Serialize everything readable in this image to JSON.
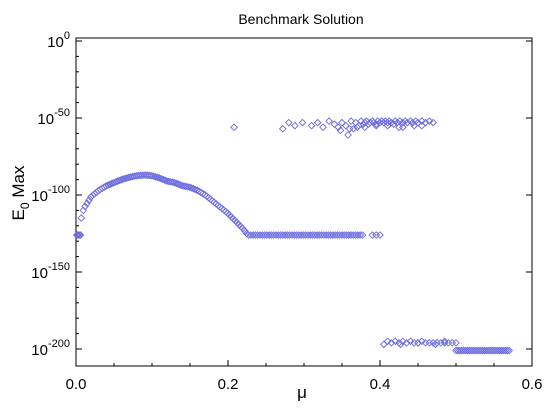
{
  "chart_data": {
    "type": "scatter",
    "title": "Benchmark Solution",
    "xlabel": "μ",
    "ylabel": {
      "base": "E",
      "sub": "0",
      "rest": " Max"
    },
    "xlim": [
      0.0,
      0.6
    ],
    "ylim_exponent": [
      -210,
      0
    ],
    "y_scale": "log",
    "grid": false,
    "legend": "none",
    "x_ticks": [
      {
        "value": 0.0,
        "label": "0.0"
      },
      {
        "value": 0.2,
        "label": "0.2"
      },
      {
        "value": 0.4,
        "label": "0.4"
      },
      {
        "value": 0.6,
        "label": "0.6"
      }
    ],
    "y_ticks": [
      {
        "exponent": 0,
        "base": "10",
        "exp": "0"
      },
      {
        "exponent": -50,
        "base": "10",
        "exp": "-50"
      },
      {
        "exponent": -100,
        "base": "10",
        "exp": "-100"
      },
      {
        "exponent": -150,
        "base": "10",
        "exp": "-150"
      },
      {
        "exponent": -200,
        "base": "10",
        "exp": "-200"
      }
    ],
    "marker": "diamond-open",
    "marker_color": "#6a6ae0",
    "y_values_are_log10": true,
    "series": [
      {
        "points_x": [
          0.001,
          0.002,
          0.003,
          0.005,
          0.006
        ],
        "points_y": [
          -126,
          -126,
          -126,
          -126,
          -126
        ]
      },
      {
        "generator": "curve",
        "x_knots": [
          0.007,
          0.01,
          0.015,
          0.02,
          0.03,
          0.04,
          0.05,
          0.06,
          0.07,
          0.08,
          0.09,
          0.1,
          0.11,
          0.12,
          0.13,
          0.14,
          0.15,
          0.16,
          0.17,
          0.18,
          0.19,
          0.2,
          0.21,
          0.22,
          0.226
        ],
        "y_knots": [
          -115,
          -109,
          -105,
          -101,
          -97,
          -94,
          -92,
          -90,
          -88.5,
          -87.5,
          -87,
          -87.5,
          -89,
          -91,
          -92,
          -94,
          -95,
          -97,
          -100,
          -104,
          -108,
          -112,
          -117,
          -122,
          -126
        ],
        "step": 0.0025
      },
      {
        "generator": "flat",
        "x_start": 0.227,
        "x_end": 0.378,
        "step": 0.003,
        "y": -126,
        "extra_x": [
          0.39,
          0.395,
          0.4
        ],
        "extra_y": [
          -126,
          -126,
          -126
        ]
      },
      {
        "points_x": [
          0.208,
          0.272,
          0.28,
          0.288,
          0.298,
          0.31,
          0.318,
          0.325,
          0.333,
          0.34,
          0.345,
          0.35,
          0.355,
          0.358,
          0.362,
          0.365,
          0.368,
          0.372,
          0.375,
          0.378,
          0.38,
          0.382,
          0.385,
          0.387,
          0.39,
          0.392,
          0.395,
          0.397,
          0.4,
          0.402,
          0.405,
          0.407,
          0.41,
          0.412,
          0.415,
          0.418,
          0.42,
          0.423,
          0.426,
          0.43,
          0.433,
          0.436,
          0.44,
          0.443,
          0.447,
          0.45,
          0.455,
          0.46,
          0.465,
          0.47,
          0.36,
          0.348,
          0.37,
          0.395,
          0.425,
          0.445,
          0.38,
          0.41,
          0.43,
          0.455
        ],
        "points_y": [
          -56,
          -57,
          -53,
          -55,
          -53,
          -55,
          -53,
          -56,
          -52,
          -54,
          -56,
          -53,
          -55,
          -61,
          -52,
          -57,
          -53,
          -55,
          -52,
          -54,
          -53,
          -52,
          -54,
          -53,
          -52,
          -53,
          -54,
          -52,
          -53,
          -52,
          -53,
          -52,
          -53,
          -52,
          -53,
          -54,
          -52,
          -53,
          -52,
          -53,
          -52,
          -53,
          -52,
          -53,
          -52,
          -53,
          -52,
          -53,
          -52,
          -53,
          -57,
          -58,
          -56,
          -55,
          -56,
          -55,
          -56,
          -55,
          -56,
          -55
        ]
      },
      {
        "points_x": [
          0.405,
          0.41,
          0.415,
          0.42,
          0.425,
          0.43,
          0.435,
          0.44,
          0.445,
          0.45,
          0.455,
          0.46,
          0.465,
          0.47,
          0.475,
          0.48,
          0.485,
          0.49,
          0.495,
          0.5,
          0.427,
          0.45,
          0.473,
          0.485
        ],
        "points_y": [
          -197,
          -195,
          -196,
          -195,
          -196,
          -195,
          -196,
          -195,
          -196,
          -196,
          -195,
          -196,
          -196,
          -196,
          -196,
          -196,
          -196,
          -196,
          -196,
          -196,
          -197,
          -196,
          -197,
          -195
        ]
      },
      {
        "generator": "flat",
        "x_start": 0.5,
        "x_end": 0.57,
        "step": 0.0025,
        "y": -201,
        "extra_x": [],
        "extra_y": []
      }
    ]
  }
}
